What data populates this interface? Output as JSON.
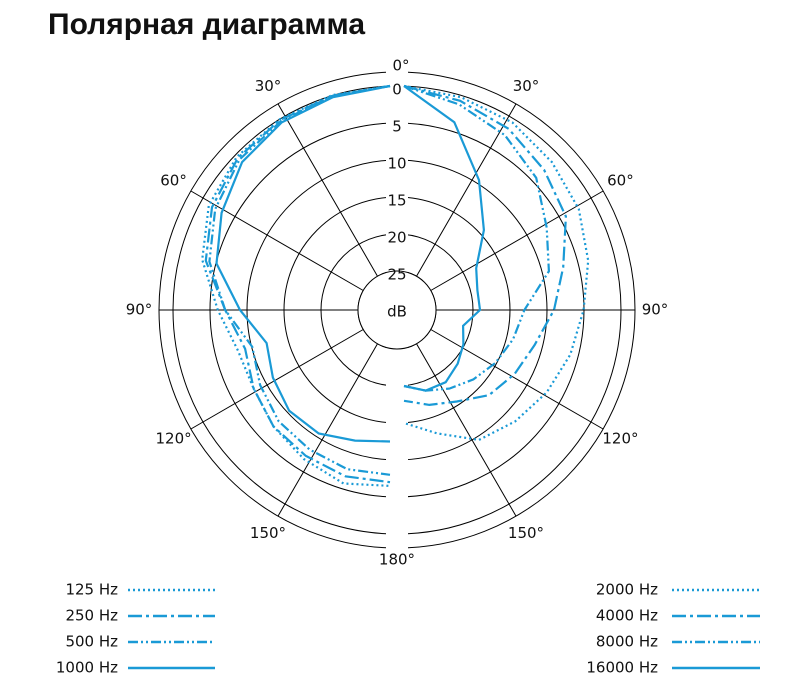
{
  "chart_data": {
    "type": "polar",
    "title": "Полярная диаграмма",
    "radial_label": "dB",
    "theta": [
      0,
      15,
      30,
      45,
      60,
      75,
      90,
      105,
      120,
      135,
      150,
      165,
      180
    ],
    "rlim": [
      0,
      25
    ],
    "rticks": [
      0,
      5,
      10,
      15,
      20,
      25
    ],
    "thetaticks": [
      {
        "value": 0,
        "label": "0°"
      },
      {
        "value": 30,
        "label": "30°"
      },
      {
        "value": 60,
        "label": "60°"
      },
      {
        "value": 90,
        "label": "90°"
      },
      {
        "value": 120,
        "label": "120°"
      },
      {
        "value": 150,
        "label": "150°"
      },
      {
        "value": 180,
        "label": "180°"
      }
    ],
    "series": [
      {
        "name": "125 Hz",
        "side": "left",
        "line_style": "dotted",
        "color": "#1a9ad6",
        "values": [
          0,
          0.2,
          0.5,
          1,
          2,
          4,
          7,
          9,
          9,
          8,
          7,
          6,
          6.5
        ]
      },
      {
        "name": "250 Hz",
        "side": "left",
        "line_style": "dash-dot",
        "color": "#1a9ad6",
        "values": [
          0,
          0.3,
          0.6,
          1.2,
          2.5,
          4.5,
          8,
          10,
          9,
          8,
          7.5,
          7,
          7
        ]
      },
      {
        "name": "500 Hz",
        "side": "left",
        "line_style": "dash-dot-dot",
        "color": "#1a9ad6",
        "values": [
          0,
          0.3,
          0.8,
          1.5,
          3,
          5,
          8,
          11,
          10,
          9,
          8.5,
          8,
          8
        ]
      },
      {
        "name": "1000 Hz",
        "side": "left",
        "line_style": "solid",
        "color": "#1a9ad6",
        "values": [
          0,
          0.5,
          1,
          2,
          4,
          6,
          10,
          13,
          12,
          11,
          11,
          12,
          12.5
        ]
      },
      {
        "name": "2000 Hz",
        "side": "right",
        "line_style": "dotted",
        "color": "#1a9ad6",
        "values": [
          0,
          0.5,
          1,
          2,
          3,
          4.5,
          6,
          7,
          8,
          9,
          10,
          13,
          15
        ]
      },
      {
        "name": "4000 Hz",
        "side": "right",
        "line_style": "dash-dot",
        "color": "#1a9ad6",
        "values": [
          0,
          1,
          2,
          3.5,
          5,
          8,
          10,
          12,
          13,
          14,
          16,
          17,
          18
        ]
      },
      {
        "name": "8000 Hz",
        "side": "right",
        "line_style": "dash-dot-dot",
        "color": "#1a9ad6",
        "values": [
          0,
          1.5,
          3,
          5,
          8,
          10,
          14,
          15,
          16,
          17,
          18,
          19,
          20
        ]
      },
      {
        "name": "16000 Hz",
        "side": "right",
        "line_style": "solid",
        "color": "#1a9ad6",
        "values": [
          0,
          4,
          10,
          15,
          19,
          20,
          20,
          22,
          21,
          20,
          19,
          19,
          20
        ]
      }
    ]
  }
}
